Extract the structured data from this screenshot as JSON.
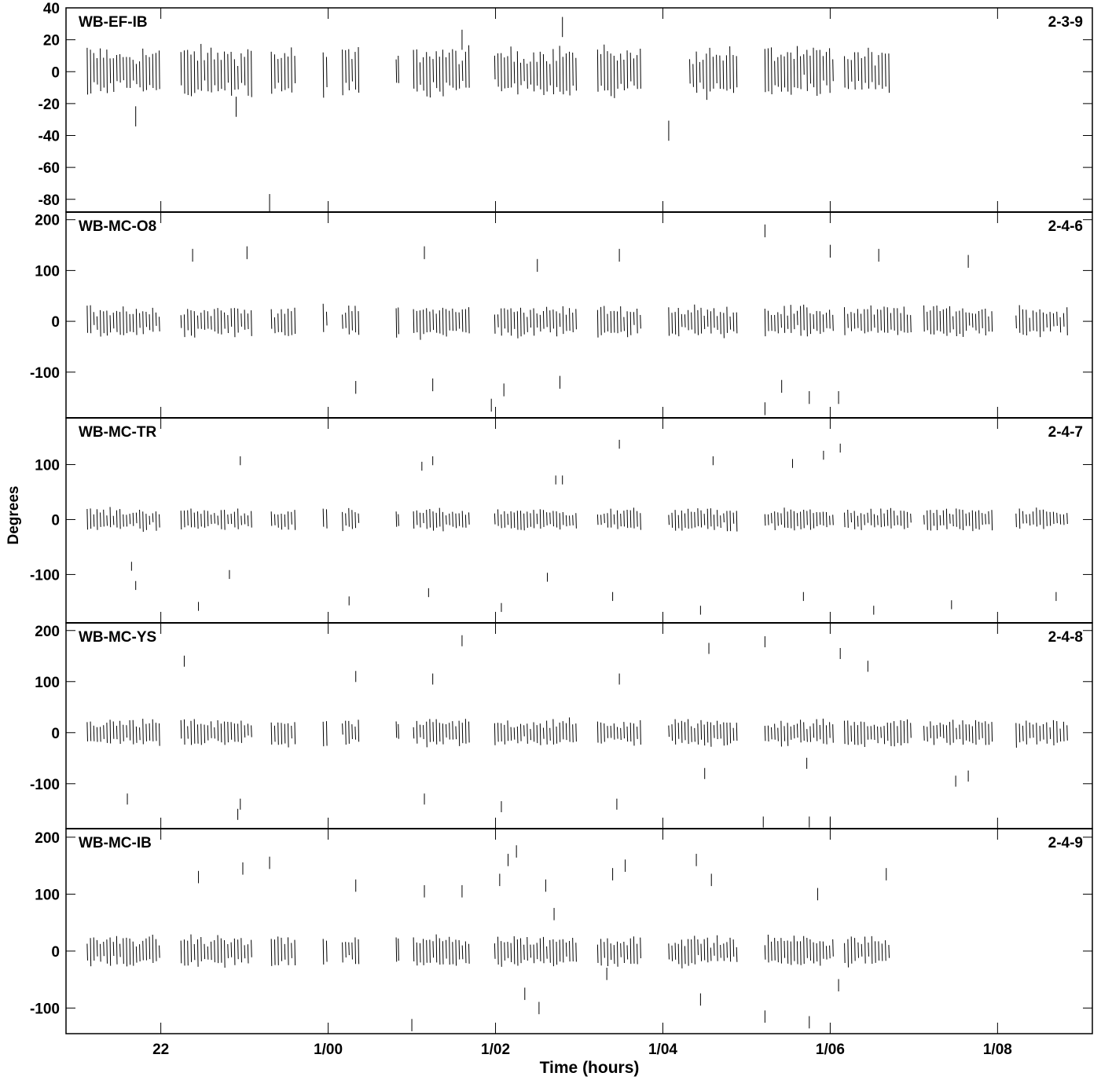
{
  "chart_data": {
    "type": "scatter",
    "xlabel": "Time (hours)",
    "ylabel": "Degrees",
    "x_tick_labels": [
      "22",
      "1/00",
      "1/02",
      "1/04",
      "1/06",
      "1/08"
    ],
    "x_tick_hours": [
      22,
      24,
      26,
      28,
      30,
      32
    ],
    "xlim_hours": [
      20.867,
      33.133
    ],
    "grid": false,
    "panels": [
      {
        "name": "WB-EF-IB",
        "id": "2-3-9",
        "ylim": [
          -88,
          40
        ],
        "yticks": [
          40,
          20,
          0,
          -20,
          -40,
          -60,
          -80
        ],
        "spread": 14,
        "scans": [
          [
            21.1,
            22.0
          ],
          [
            22.22,
            23.1
          ],
          [
            23.3,
            23.62
          ],
          [
            23.92,
            24.0
          ],
          [
            24.15,
            24.38
          ],
          [
            24.8,
            24.85
          ],
          [
            25.0,
            25.7
          ],
          [
            25.97,
            26.98
          ],
          [
            27.2,
            27.75
          ],
          [
            28.3,
            28.9
          ],
          [
            29.2,
            30.05
          ],
          [
            30.15,
            30.72
          ]
        ],
        "outliers": [
          [
            23.3,
            -83
          ],
          [
            28.07,
            -37
          ],
          [
            26.8,
            28
          ],
          [
            25.6,
            20
          ],
          [
            22.9,
            -22
          ],
          [
            21.7,
            -28
          ]
        ]
      },
      {
        "name": "WB-MC-O8",
        "id": "2-4-6",
        "ylim": [
          -190,
          215
        ],
        "yticks": [
          200,
          100,
          0,
          -100
        ],
        "spread": 28,
        "scans": [
          [
            21.1,
            22.0
          ],
          [
            22.22,
            23.1
          ],
          [
            23.3,
            23.62
          ],
          [
            23.92,
            24.0
          ],
          [
            24.15,
            24.38
          ],
          [
            24.8,
            24.85
          ],
          [
            25.0,
            25.7
          ],
          [
            25.97,
            26.98
          ],
          [
            27.2,
            27.75
          ],
          [
            28.05,
            28.9
          ],
          [
            29.2,
            30.05
          ],
          [
            30.15,
            30.98
          ],
          [
            31.1,
            31.95
          ],
          [
            32.2,
            32.85
          ]
        ],
        "outliers": [
          [
            22.38,
            130
          ],
          [
            23.03,
            135
          ],
          [
            25.15,
            135
          ],
          [
            26.5,
            110
          ],
          [
            27.48,
            130
          ],
          [
            29.22,
            178
          ],
          [
            30.0,
            138
          ],
          [
            30.58,
            130
          ],
          [
            31.65,
            118
          ],
          [
            24.33,
            -130
          ],
          [
            25.25,
            -125
          ],
          [
            26.77,
            -120
          ],
          [
            25.95,
            -165
          ],
          [
            26.1,
            -135
          ],
          [
            29.22,
            -172
          ],
          [
            29.75,
            -150
          ],
          [
            30.1,
            -150
          ],
          [
            29.42,
            -128
          ]
        ]
      },
      {
        "name": "WB-MC-TR",
        "id": "2-4-7",
        "ylim": [
          -188,
          185
        ],
        "yticks": [
          100,
          0,
          -100
        ],
        "spread": 18,
        "scans": [
          [
            21.1,
            22.0
          ],
          [
            22.22,
            23.1
          ],
          [
            23.3,
            23.62
          ],
          [
            23.92,
            24.0
          ],
          [
            24.15,
            24.38
          ],
          [
            24.8,
            24.85
          ],
          [
            25.0,
            25.7
          ],
          [
            25.97,
            26.98
          ],
          [
            27.2,
            27.75
          ],
          [
            28.05,
            28.9
          ],
          [
            29.2,
            30.05
          ],
          [
            30.15,
            30.98
          ],
          [
            31.1,
            31.95
          ],
          [
            32.2,
            32.85
          ]
        ],
        "outliers": [
          [
            22.95,
            107
          ],
          [
            25.25,
            107
          ],
          [
            25.12,
            97
          ],
          [
            26.72,
            72
          ],
          [
            26.8,
            72
          ],
          [
            27.48,
            137
          ],
          [
            28.6,
            107
          ],
          [
            29.55,
            102
          ],
          [
            29.92,
            117
          ],
          [
            30.12,
            130
          ],
          [
            21.65,
            -85
          ],
          [
            22.45,
            -158
          ],
          [
            22.82,
            -100
          ],
          [
            24.25,
            -148
          ],
          [
            25.2,
            -133
          ],
          [
            26.07,
            -160
          ],
          [
            26.62,
            -105
          ],
          [
            27.4,
            -140
          ],
          [
            28.45,
            -165
          ],
          [
            29.68,
            -140
          ],
          [
            30.52,
            -165
          ],
          [
            31.45,
            -155
          ],
          [
            32.7,
            -140
          ],
          [
            21.7,
            -120
          ]
        ]
      },
      {
        "name": "WB-MC-YS",
        "id": "2-4-8",
        "ylim": [
          -188,
          215
        ],
        "yticks": [
          200,
          100,
          0,
          -100
        ],
        "spread": 24,
        "scans": [
          [
            21.1,
            22.0
          ],
          [
            22.22,
            23.1
          ],
          [
            23.3,
            23.62
          ],
          [
            23.92,
            24.0
          ],
          [
            24.15,
            24.38
          ],
          [
            24.8,
            24.85
          ],
          [
            25.0,
            25.7
          ],
          [
            25.97,
            26.98
          ],
          [
            27.2,
            27.75
          ],
          [
            28.05,
            28.9
          ],
          [
            29.2,
            30.05
          ],
          [
            30.15,
            30.98
          ],
          [
            31.1,
            31.95
          ],
          [
            32.2,
            32.85
          ]
        ],
        "outliers": [
          [
            22.28,
            140
          ],
          [
            24.33,
            110
          ],
          [
            25.25,
            105
          ],
          [
            25.6,
            180
          ],
          [
            27.48,
            105
          ],
          [
            28.55,
            165
          ],
          [
            29.22,
            178
          ],
          [
            30.12,
            155
          ],
          [
            30.45,
            130
          ],
          [
            21.6,
            -130
          ],
          [
            22.92,
            -160
          ],
          [
            22.95,
            -140
          ],
          [
            25.15,
            -130
          ],
          [
            26.07,
            -145
          ],
          [
            27.45,
            -140
          ],
          [
            28.5,
            -80
          ],
          [
            29.72,
            -60
          ],
          [
            31.65,
            -85
          ],
          [
            31.5,
            -95
          ],
          [
            29.2,
            -175
          ],
          [
            29.75,
            -175
          ],
          [
            30.0,
            -175
          ]
        ]
      },
      {
        "name": "WB-MC-IB",
        "id": "2-4-9",
        "ylim": [
          -145,
          215
        ],
        "yticks": [
          200,
          100,
          0,
          -100
        ],
        "spread": 24,
        "scans": [
          [
            21.1,
            22.0
          ],
          [
            22.22,
            23.1
          ],
          [
            23.3,
            23.62
          ],
          [
            23.92,
            24.0
          ],
          [
            24.15,
            24.38
          ],
          [
            24.8,
            24.85
          ],
          [
            25.0,
            25.7
          ],
          [
            25.97,
            26.98
          ],
          [
            27.2,
            27.75
          ],
          [
            28.05,
            28.9
          ],
          [
            29.2,
            30.05
          ],
          [
            30.15,
            30.72
          ]
        ],
        "outliers": [
          [
            22.45,
            130
          ],
          [
            22.98,
            145
          ],
          [
            23.3,
            155
          ],
          [
            24.33,
            115
          ],
          [
            25.15,
            105
          ],
          [
            25.6,
            105
          ],
          [
            26.15,
            160
          ],
          [
            26.25,
            175
          ],
          [
            26.05,
            125
          ],
          [
            26.7,
            65
          ],
          [
            26.6,
            115
          ],
          [
            27.4,
            135
          ],
          [
            27.55,
            150
          ],
          [
            28.4,
            160
          ],
          [
            28.58,
            125
          ],
          [
            29.85,
            100
          ],
          [
            30.67,
            135
          ],
          [
            25.0,
            -130
          ],
          [
            26.35,
            -75
          ],
          [
            26.52,
            -100
          ],
          [
            27.33,
            -40
          ],
          [
            28.45,
            -85
          ],
          [
            29.22,
            -115
          ],
          [
            29.75,
            -125
          ],
          [
            30.1,
            -60
          ]
        ]
      }
    ]
  }
}
